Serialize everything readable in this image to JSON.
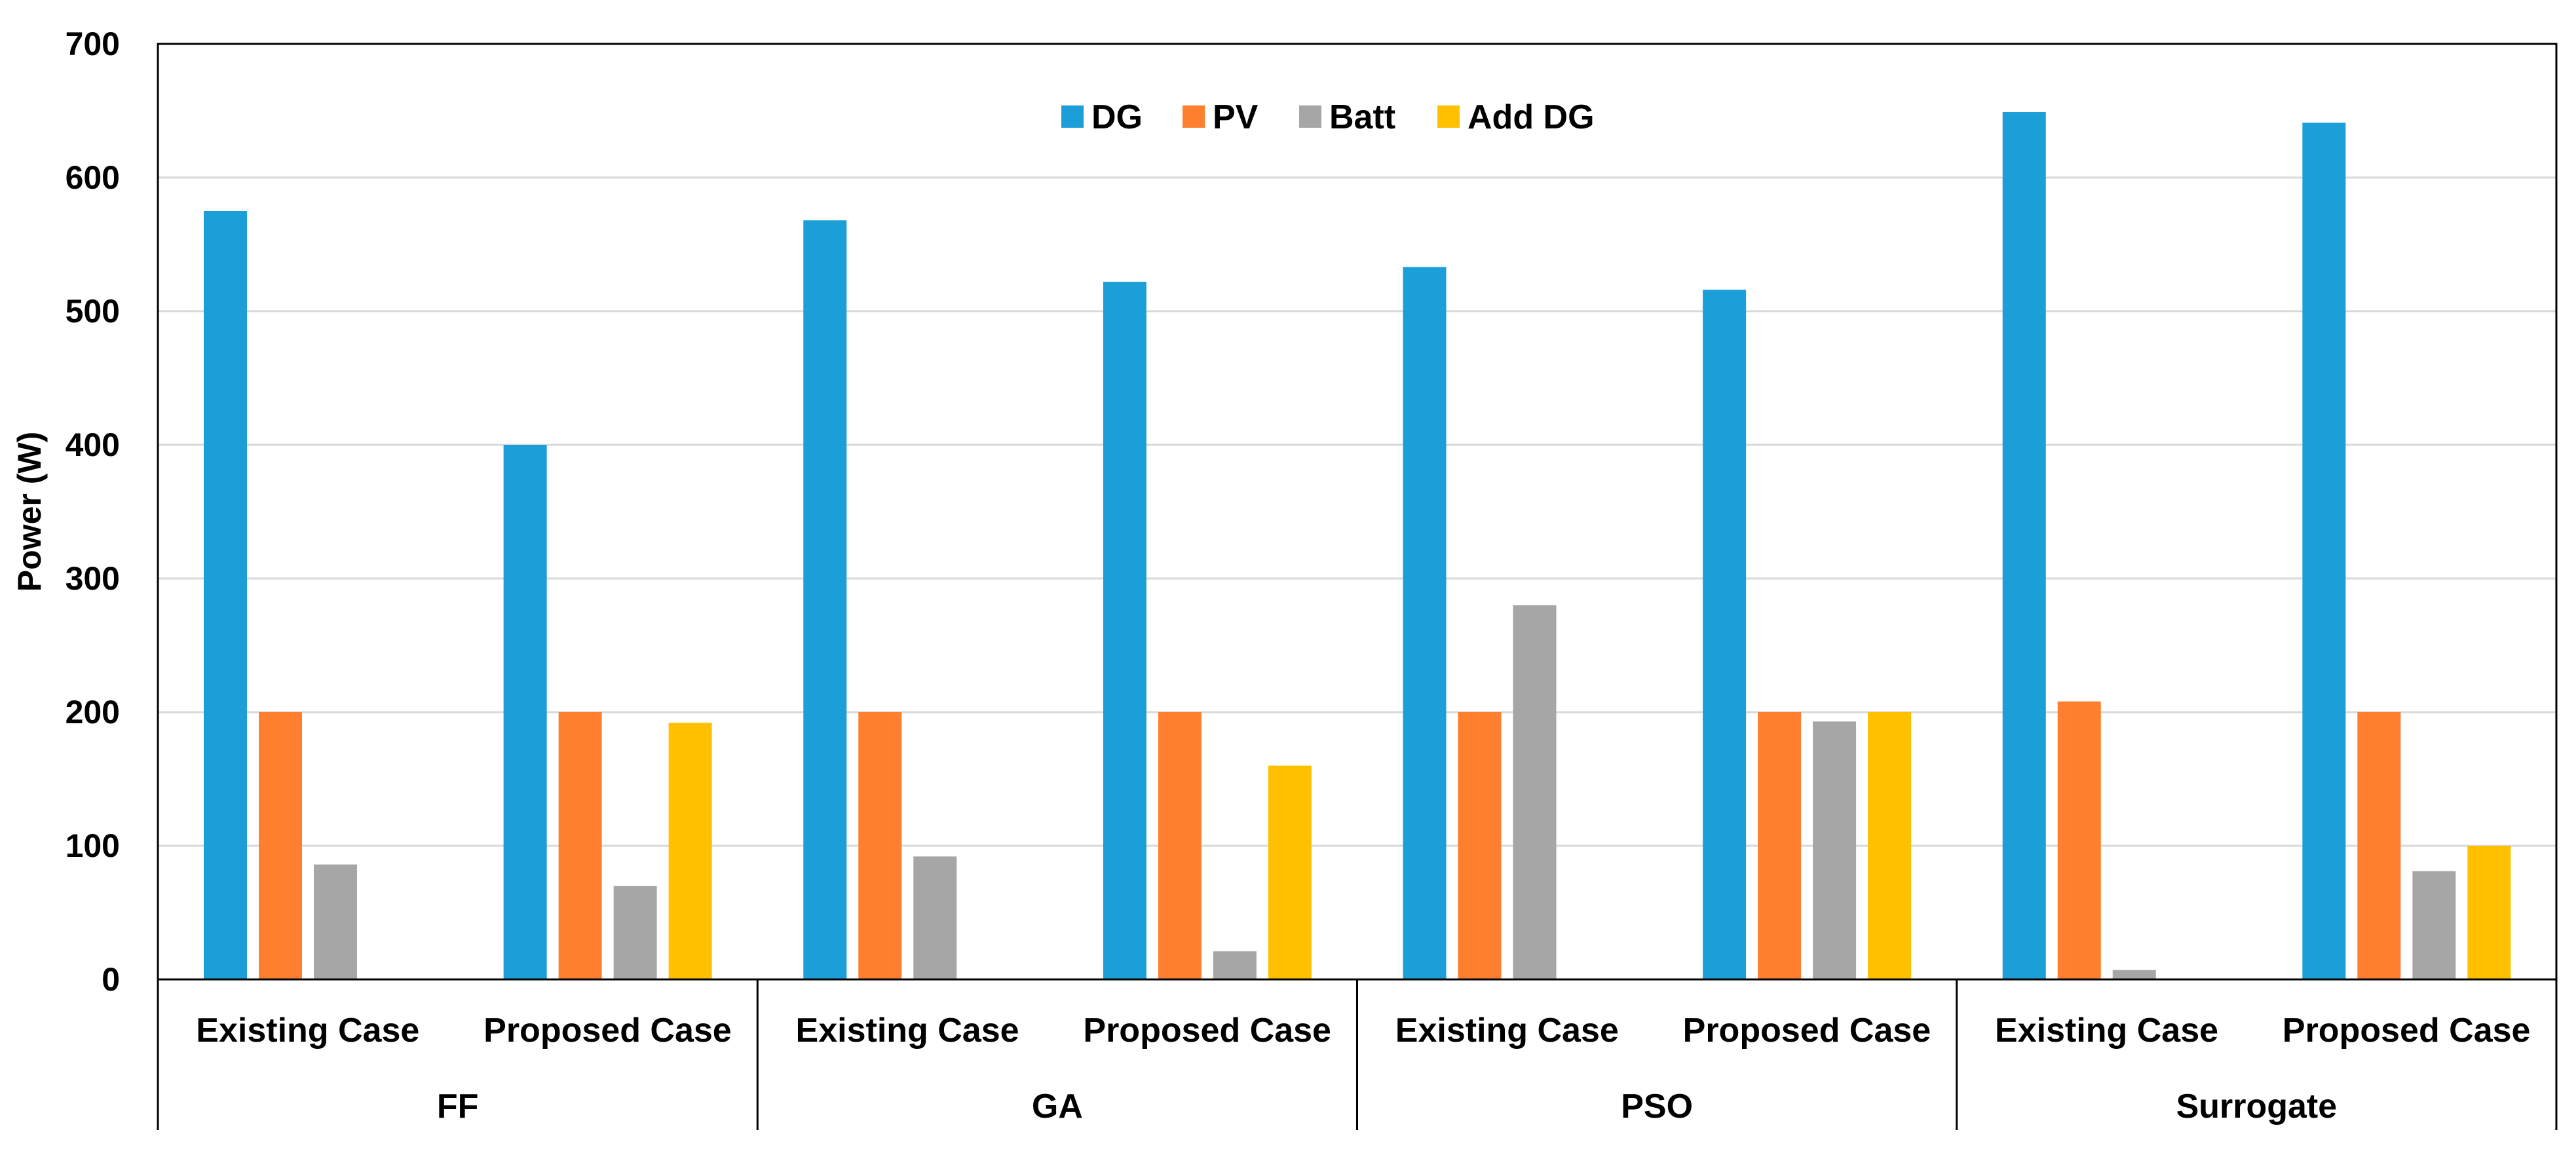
{
  "chart_data": {
    "type": "bar",
    "title": "",
    "xlabel": "",
    "ylabel": "Power (W)",
    "ylim": [
      0,
      700
    ],
    "yticks": [
      0,
      100,
      200,
      300,
      400,
      500,
      600,
      700
    ],
    "grid": true,
    "legend_position": "top-center",
    "groups": [
      "FF",
      "GA",
      "PSO",
      "Surrogate"
    ],
    "subcategories": [
      "Existing Case",
      "Proposed Case"
    ],
    "categories": [
      "FF Existing Case",
      "FF Proposed Case",
      "GA Existing Case",
      "GA Proposed Case",
      "PSO Existing Case",
      "PSO Proposed Case",
      "Surrogate Existing Case",
      "Surrogate Proposed Case"
    ],
    "series": [
      {
        "name": "DG",
        "color": "#1c9ed8",
        "values": [
          575,
          400,
          568,
          522,
          533,
          516,
          649,
          641
        ]
      },
      {
        "name": "PV",
        "color": "#fe7f2d",
        "values": [
          200,
          200,
          200,
          200,
          200,
          200,
          208,
          200
        ]
      },
      {
        "name": "Batt",
        "color": "#a6a6a6",
        "values": [
          86,
          70,
          92,
          21,
          280,
          193,
          7,
          81
        ]
      },
      {
        "name": "Add DG",
        "color": "#ffc000",
        "values": [
          0,
          192,
          0,
          160,
          0,
          200,
          0,
          100
        ]
      }
    ]
  }
}
